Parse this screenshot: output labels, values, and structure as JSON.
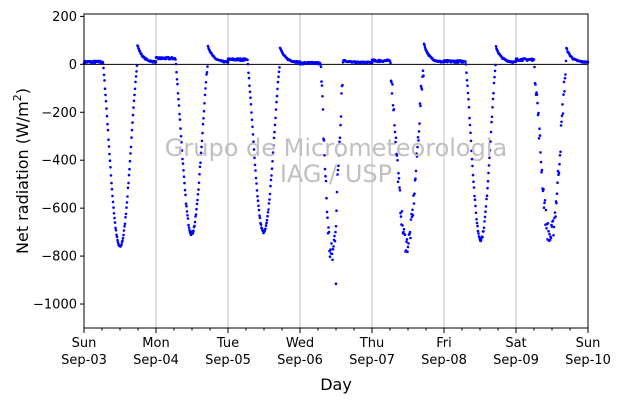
{
  "chart_data": {
    "type": "scatter",
    "xlabel": "Day",
    "ylabel": "Net radiation (W/m²)",
    "ylabel_parts": {
      "base": "Net radiation (W/m",
      "sup": "2",
      "close": ")"
    },
    "ylim": [
      -1100,
      210
    ],
    "xlim": [
      "2023-09-03",
      "2023-09-10"
    ],
    "yticks": [
      200,
      0,
      -200,
      -400,
      -600,
      -800,
      -1000
    ],
    "ytick_labels": [
      "200",
      "0",
      "−200",
      "−400",
      "−600",
      "−800",
      "−1000"
    ],
    "xticks": [
      {
        "day": "Sun",
        "date": "Sep-03"
      },
      {
        "day": "Mon",
        "date": "Sep-04"
      },
      {
        "day": "Tue",
        "date": "Sep-05"
      },
      {
        "day": "Wed",
        "date": "Sep-06"
      },
      {
        "day": "Thu",
        "date": "Sep-07"
      },
      {
        "day": "Fri",
        "date": "Sep-08"
      },
      {
        "day": "Sat",
        "date": "Sep-09"
      },
      {
        "day": "Sun",
        "date": "Sep-10"
      }
    ],
    "grid": "vertical",
    "zero_line": true,
    "marker_color": "#0000ff",
    "daily_profiles": [
      {
        "date": "Sep-03",
        "sunrise": 0.26,
        "sunset": 0.74,
        "noon_min": -760,
        "night": 10,
        "eve_peak": 75,
        "noise": 10
      },
      {
        "date": "Sep-04",
        "sunrise": 0.27,
        "sunset": 0.72,
        "noon_min": -705,
        "night": 25,
        "eve_peak": 72,
        "noise": 15
      },
      {
        "date": "Sep-05",
        "sunrise": 0.27,
        "sunset": 0.72,
        "noon_min": -700,
        "night": 20,
        "eve_peak": 65,
        "noise": 10
      },
      {
        "date": "Sep-06",
        "sunrise": 0.28,
        "sunset": 0.6,
        "noon_min": -800,
        "night": 5,
        "eve_peak": 10,
        "noise": 120
      },
      {
        "date": "Sep-07",
        "sunrise": 0.25,
        "sunset": 0.72,
        "noon_min": -750,
        "night": 15,
        "eve_peak": 80,
        "noise": 80
      },
      {
        "date": "Sep-08",
        "sunrise": 0.3,
        "sunset": 0.72,
        "noon_min": -730,
        "night": 12,
        "eve_peak": 68,
        "noise": 15
      },
      {
        "date": "Sep-09",
        "sunrise": 0.25,
        "sunset": 0.7,
        "noon_min": -720,
        "night": 20,
        "eve_peak": 60,
        "noise": 90
      }
    ],
    "outliers": [
      {
        "x": "2023-09-06 12:00",
        "y": -915
      }
    ]
  },
  "watermark": {
    "line1": "Grupo de Micrometeorologia",
    "line2": "IAG / USP"
  }
}
